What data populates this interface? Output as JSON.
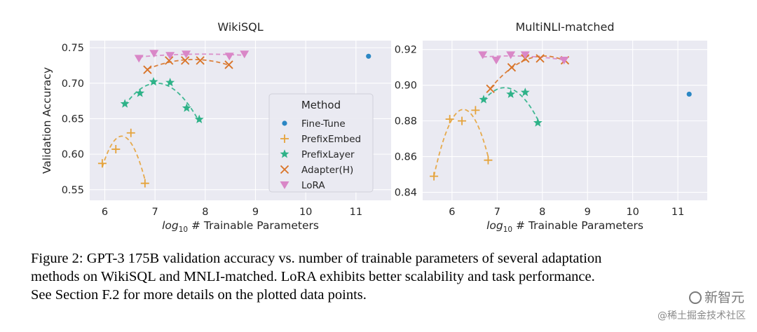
{
  "chart_data": [
    {
      "type": "scatter",
      "title": "WikiSQL",
      "xlabel_prefix": "log",
      "xlabel_sub": "10",
      "xlabel_rest": " # Trainable Parameters",
      "ylabel": "Validation Accuracy",
      "xlim": [
        5.7,
        11.7
      ],
      "ylim": [
        0.535,
        0.76
      ],
      "xticks": [
        6,
        7,
        8,
        9,
        10,
        11
      ],
      "yticks": [
        0.55,
        0.6,
        0.65,
        0.7,
        0.75
      ],
      "ytick_labels": [
        "0.55",
        "0.60",
        "0.65",
        "0.70",
        "0.75"
      ],
      "legend": {
        "title": "Method",
        "placement": "center-right",
        "entries": [
          "Fine-Tune",
          "PrefixEmbed",
          "PrefixLayer",
          "Adapter(H)",
          "LoRA"
        ]
      },
      "series": [
        {
          "name": "Fine-Tune",
          "marker": "dot",
          "color": "#2b87c4",
          "fit": false,
          "points": [
            [
              11.25,
              0.738
            ]
          ]
        },
        {
          "name": "PrefixEmbed",
          "marker": "plus",
          "color": "#e5a33b",
          "fit": true,
          "points": [
            [
              5.95,
              0.587
            ],
            [
              6.22,
              0.607
            ],
            [
              6.52,
              0.63
            ],
            [
              6.8,
              0.559
            ]
          ]
        },
        {
          "name": "PrefixLayer",
          "marker": "star",
          "color": "#2eb288",
          "fit": true,
          "points": [
            [
              6.4,
              0.671
            ],
            [
              6.7,
              0.686
            ],
            [
              6.97,
              0.702
            ],
            [
              7.3,
              0.701
            ],
            [
              7.63,
              0.665
            ],
            [
              7.88,
              0.649
            ]
          ]
        },
        {
          "name": "Adapter(H)",
          "marker": "x",
          "color": "#d9752a",
          "fit": true,
          "points": [
            [
              6.85,
              0.719
            ],
            [
              7.28,
              0.732
            ],
            [
              7.6,
              0.732
            ],
            [
              7.9,
              0.732
            ],
            [
              8.47,
              0.726
            ]
          ]
        },
        {
          "name": "LoRA",
          "marker": "tri",
          "color": "#d987c7",
          "fit": true,
          "points": [
            [
              6.68,
              0.735
            ],
            [
              6.98,
              0.742
            ],
            [
              7.3,
              0.739
            ],
            [
              7.62,
              0.741
            ],
            [
              8.48,
              0.738
            ],
            [
              8.78,
              0.741
            ]
          ]
        }
      ]
    },
    {
      "type": "scatter",
      "title": "MultiNLI-matched",
      "xlabel_prefix": "log",
      "xlabel_sub": "10",
      "xlabel_rest": " # Trainable Parameters",
      "ylabel": "",
      "xlim": [
        5.35,
        11.65
      ],
      "ylim": [
        0.8355,
        0.925
      ],
      "xticks": [
        6,
        7,
        8,
        9,
        10,
        11
      ],
      "yticks": [
        0.84,
        0.86,
        0.88,
        0.9,
        0.92
      ],
      "ytick_labels": [
        "0.84",
        "0.86",
        "0.88",
        "0.90",
        "0.92"
      ],
      "series": [
        {
          "name": "Fine-Tune",
          "marker": "dot",
          "color": "#2b87c4",
          "fit": false,
          "points": [
            [
              11.25,
              0.895
            ]
          ]
        },
        {
          "name": "PrefixEmbed",
          "marker": "plus",
          "color": "#e5a33b",
          "fit": true,
          "points": [
            [
              5.6,
              0.849
            ],
            [
              5.95,
              0.881
            ],
            [
              6.22,
              0.88
            ],
            [
              6.52,
              0.886
            ],
            [
              6.8,
              0.858
            ]
          ]
        },
        {
          "name": "PrefixLayer",
          "marker": "star",
          "color": "#2eb288",
          "fit": true,
          "points": [
            [
              6.7,
              0.892
            ],
            [
              7.3,
              0.895
            ],
            [
              7.62,
              0.896
            ],
            [
              7.9,
              0.879
            ]
          ]
        },
        {
          "name": "Adapter(H)",
          "marker": "x",
          "color": "#d9752a",
          "fit": true,
          "points": [
            [
              6.85,
              0.898
            ],
            [
              7.32,
              0.91
            ],
            [
              7.62,
              0.915
            ],
            [
              7.95,
              0.915
            ],
            [
              8.5,
              0.914
            ]
          ]
        },
        {
          "name": "LoRA",
          "marker": "tri",
          "color": "#d987c7",
          "fit": true,
          "points": [
            [
              6.68,
              0.917
            ],
            [
              6.98,
              0.914
            ],
            [
              7.3,
              0.917
            ],
            [
              7.62,
              0.917
            ],
            [
              8.48,
              0.914
            ]
          ]
        }
      ]
    }
  ],
  "caption": {
    "lines": [
      "Figure 2: GPT-3 175B validation accuracy vs. number of trainable parameters of several adaptation",
      "methods on WikiSQL and MNLI-matched. LoRA exhibits better scalability and task performance.",
      "See Section F.2 for more details on the plotted data points."
    ]
  },
  "watermark": {
    "top": "新智元",
    "bottom": "@稀土掘金技术社区"
  }
}
